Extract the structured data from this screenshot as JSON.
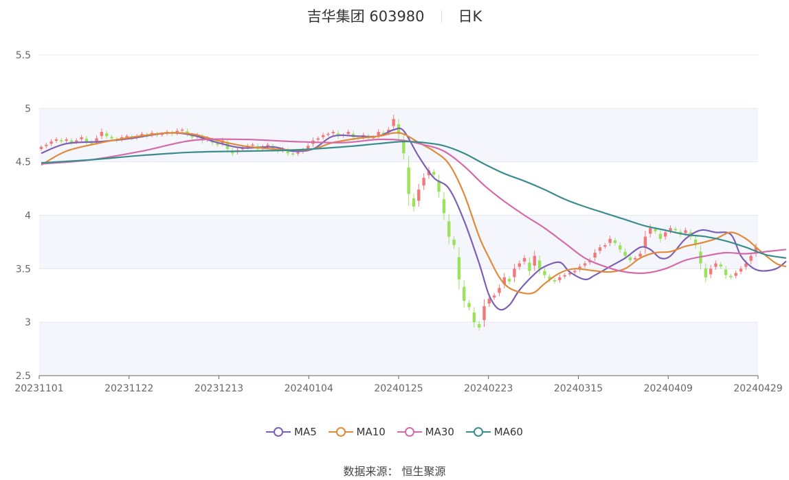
{
  "chart_data": {
    "type": "candlestick",
    "title": "吉华集团 603980",
    "period_label": "日K",
    "ylim": [
      2.5,
      5.5
    ],
    "y_ticks": [
      "2.5",
      "3",
      "3.5",
      "4",
      "4.5",
      "5",
      "5.5"
    ],
    "x_ticks": [
      "20231101",
      "20231122",
      "20231213",
      "20240104",
      "20240125",
      "20240223",
      "20240315",
      "20240409",
      "20240429"
    ],
    "up_color": "#f07a7a",
    "down_color": "#9be25c",
    "close": [
      4.64,
      4.66,
      4.69,
      4.71,
      4.69,
      4.71,
      4.68,
      4.7,
      4.73,
      4.69,
      4.67,
      4.72,
      4.78,
      4.74,
      4.72,
      4.7,
      4.73,
      4.74,
      4.72,
      4.74,
      4.76,
      4.74,
      4.77,
      4.75,
      4.76,
      4.78,
      4.76,
      4.79,
      4.8,
      4.76,
      4.73,
      4.75,
      4.7,
      4.72,
      4.68,
      4.66,
      4.7,
      4.62,
      4.58,
      4.61,
      4.63,
      4.65,
      4.66,
      4.62,
      4.64,
      4.66,
      4.62,
      4.6,
      4.62,
      4.58,
      4.57,
      4.59,
      4.61,
      4.65,
      4.7,
      4.72,
      4.75,
      4.76,
      4.78,
      4.74,
      4.75,
      4.78,
      4.73,
      4.72,
      4.75,
      4.72,
      4.73,
      4.78,
      4.76,
      4.8,
      4.9,
      4.76,
      4.58,
      4.2,
      4.08,
      4.24,
      4.35,
      4.42,
      4.38,
      4.22,
      4.02,
      3.8,
      3.72,
      3.4,
      3.2,
      3.14,
      3.0,
      2.95,
      3.15,
      3.22,
      3.25,
      3.32,
      3.42,
      3.38,
      3.5,
      3.55,
      3.6,
      3.48,
      3.62,
      3.5,
      3.44,
      3.4,
      3.38,
      3.42,
      3.44,
      3.46,
      3.48,
      3.52,
      3.55,
      3.58,
      3.65,
      3.7,
      3.72,
      3.78,
      3.74,
      3.68,
      3.62,
      3.58,
      3.6,
      3.64,
      3.8,
      3.88,
      3.85,
      3.78,
      3.84,
      3.88,
      3.86,
      3.82,
      3.86,
      3.8,
      3.72,
      3.55,
      3.42,
      3.5,
      3.55,
      3.52,
      3.44,
      3.42,
      3.46,
      3.5,
      3.55,
      3.62,
      3.7
    ],
    "series": [
      {
        "name": "MA5",
        "color": "#7b5fb5",
        "points": [
          [
            0,
            4.58
          ],
          [
            5,
            4.67
          ],
          [
            12,
            4.69
          ],
          [
            18,
            4.72
          ],
          [
            25,
            4.77
          ],
          [
            30,
            4.75
          ],
          [
            35,
            4.68
          ],
          [
            40,
            4.63
          ],
          [
            46,
            4.64
          ],
          [
            50,
            4.6
          ],
          [
            54,
            4.62
          ],
          [
            58,
            4.74
          ],
          [
            63,
            4.74
          ],
          [
            67,
            4.74
          ],
          [
            70,
            4.8
          ],
          [
            72,
            4.79
          ],
          [
            75,
            4.55
          ],
          [
            78,
            4.35
          ],
          [
            81,
            4.25
          ],
          [
            84,
            3.95
          ],
          [
            87,
            3.55
          ],
          [
            89,
            3.25
          ],
          [
            91,
            3.12
          ],
          [
            93,
            3.16
          ],
          [
            95,
            3.3
          ],
          [
            98,
            3.45
          ],
          [
            100,
            3.52
          ],
          [
            103,
            3.56
          ],
          [
            105,
            3.47
          ],
          [
            108,
            3.4
          ],
          [
            110,
            3.44
          ],
          [
            113,
            3.52
          ],
          [
            116,
            3.6
          ],
          [
            119,
            3.7
          ],
          [
            121,
            3.68
          ],
          [
            123,
            3.6
          ],
          [
            125,
            3.62
          ],
          [
            128,
            3.78
          ],
          [
            131,
            3.86
          ],
          [
            134,
            3.84
          ],
          [
            137,
            3.82
          ],
          [
            139,
            3.62
          ],
          [
            141,
            3.52
          ],
          [
            143,
            3.48
          ],
          [
            146,
            3.5
          ],
          [
            148,
            3.57
          ]
        ]
      },
      {
        "name": "MA10",
        "color": "#e0893a",
        "points": [
          [
            0,
            4.47
          ],
          [
            5,
            4.6
          ],
          [
            12,
            4.68
          ],
          [
            18,
            4.73
          ],
          [
            25,
            4.77
          ],
          [
            30,
            4.76
          ],
          [
            35,
            4.7
          ],
          [
            40,
            4.65
          ],
          [
            46,
            4.62
          ],
          [
            50,
            4.61
          ],
          [
            54,
            4.62
          ],
          [
            58,
            4.68
          ],
          [
            63,
            4.72
          ],
          [
            67,
            4.74
          ],
          [
            70,
            4.77
          ],
          [
            72,
            4.76
          ],
          [
            75,
            4.68
          ],
          [
            78,
            4.6
          ],
          [
            81,
            4.48
          ],
          [
            84,
            4.2
          ],
          [
            87,
            3.8
          ],
          [
            89,
            3.6
          ],
          [
            91,
            3.42
          ],
          [
            93,
            3.32
          ],
          [
            96,
            3.27
          ],
          [
            98,
            3.28
          ],
          [
            100,
            3.36
          ],
          [
            103,
            3.46
          ],
          [
            106,
            3.5
          ],
          [
            110,
            3.48
          ],
          [
            113,
            3.47
          ],
          [
            116,
            3.5
          ],
          [
            119,
            3.6
          ],
          [
            122,
            3.65
          ],
          [
            125,
            3.66
          ],
          [
            128,
            3.71
          ],
          [
            131,
            3.74
          ],
          [
            134,
            3.78
          ],
          [
            137,
            3.84
          ],
          [
            140,
            3.78
          ],
          [
            143,
            3.66
          ],
          [
            146,
            3.55
          ],
          [
            148,
            3.52
          ]
        ]
      },
      {
        "name": "MA30",
        "color": "#d46aa8",
        "points": [
          [
            0,
            4.48
          ],
          [
            10,
            4.52
          ],
          [
            20,
            4.6
          ],
          [
            30,
            4.7
          ],
          [
            40,
            4.71
          ],
          [
            50,
            4.69
          ],
          [
            60,
            4.68
          ],
          [
            67,
            4.71
          ],
          [
            72,
            4.7
          ],
          [
            76,
            4.66
          ],
          [
            80,
            4.6
          ],
          [
            84,
            4.46
          ],
          [
            88,
            4.28
          ],
          [
            92,
            4.13
          ],
          [
            96,
            4.0
          ],
          [
            100,
            3.88
          ],
          [
            104,
            3.74
          ],
          [
            108,
            3.6
          ],
          [
            112,
            3.52
          ],
          [
            116,
            3.47
          ],
          [
            120,
            3.46
          ],
          [
            124,
            3.5
          ],
          [
            128,
            3.58
          ],
          [
            132,
            3.62
          ],
          [
            136,
            3.65
          ],
          [
            140,
            3.64
          ],
          [
            144,
            3.66
          ],
          [
            148,
            3.68
          ]
        ]
      },
      {
        "name": "MA60",
        "color": "#3a8c8c",
        "points": [
          [
            0,
            4.49
          ],
          [
            10,
            4.52
          ],
          [
            20,
            4.56
          ],
          [
            30,
            4.59
          ],
          [
            40,
            4.6
          ],
          [
            50,
            4.61
          ],
          [
            60,
            4.64
          ],
          [
            67,
            4.67
          ],
          [
            72,
            4.69
          ],
          [
            76,
            4.68
          ],
          [
            80,
            4.65
          ],
          [
            84,
            4.58
          ],
          [
            88,
            4.48
          ],
          [
            92,
            4.39
          ],
          [
            96,
            4.32
          ],
          [
            100,
            4.24
          ],
          [
            104,
            4.15
          ],
          [
            108,
            4.08
          ],
          [
            112,
            4.02
          ],
          [
            116,
            3.96
          ],
          [
            120,
            3.9
          ],
          [
            124,
            3.86
          ],
          [
            128,
            3.82
          ],
          [
            132,
            3.8
          ],
          [
            136,
            3.76
          ],
          [
            140,
            3.7
          ],
          [
            144,
            3.63
          ],
          [
            148,
            3.6
          ]
        ]
      }
    ]
  },
  "legend": {
    "items": [
      {
        "label": "MA5",
        "color": "#7b5fb5"
      },
      {
        "label": "MA10",
        "color": "#e0893a"
      },
      {
        "label": "MA30",
        "color": "#d46aa8"
      },
      {
        "label": "MA60",
        "color": "#3a8c8c"
      }
    ]
  },
  "footer": {
    "source": "数据来源： 恒生聚源"
  }
}
